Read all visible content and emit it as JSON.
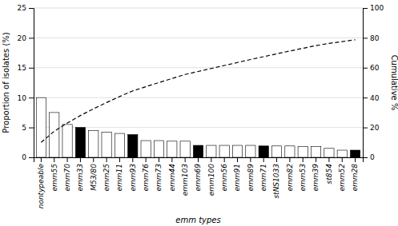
{
  "chart_data": {
    "type": "bar",
    "categories": [
      "nontypeable",
      "emm55",
      "emm70",
      "emm33",
      "M53/80",
      "emm25",
      "emm11",
      "emm93",
      "emm76",
      "emm73",
      "emm44",
      "emm103",
      "emm69",
      "emm100",
      "emm56",
      "emm91",
      "emm89",
      "emm71",
      "stNS1033",
      "emm82",
      "emm53",
      "emm39",
      "st854",
      "emm52",
      "emm28"
    ],
    "series": [
      {
        "type": "bar",
        "colors": [
          "white",
          "white",
          "white",
          "black",
          "white",
          "white",
          "white",
          "black",
          "white",
          "white",
          "white",
          "white",
          "black",
          "white",
          "white",
          "white",
          "white",
          "black",
          "white",
          "white",
          "white",
          "white",
          "white",
          "white",
          "black"
        ],
        "values": [
          10.0,
          7.5,
          5.5,
          5.0,
          4.5,
          4.2,
          4.0,
          3.8,
          2.8,
          2.8,
          2.7,
          2.7,
          2.0,
          2.0,
          2.0,
          2.0,
          2.0,
          1.9,
          1.9,
          1.9,
          1.8,
          1.8,
          1.5,
          1.2,
          1.2
        ]
      },
      {
        "type": "line",
        "axis": "y2",
        "color": "black",
        "line_style": "dashed",
        "values": [
          10.0,
          17.5,
          23.0,
          28.0,
          32.5,
          36.7,
          40.7,
          44.5,
          47.3,
          50.1,
          52.8,
          55.5,
          57.5,
          59.5,
          61.5,
          63.5,
          65.5,
          67.4,
          69.3,
          71.2,
          73.0,
          74.8,
          76.3,
          77.5,
          78.7
        ]
      }
    ],
    "x_label": "emm types",
    "y_label": "Proportion of isolates (%)",
    "y2_label": "Cumulative %",
    "ylim": [
      0,
      25
    ],
    "yticks": [
      0,
      5,
      10,
      15,
      20,
      25
    ],
    "y2lim": [
      0,
      100
    ],
    "y2ticks": [
      0,
      20,
      40,
      60,
      80,
      100
    ],
    "grid": true
  }
}
